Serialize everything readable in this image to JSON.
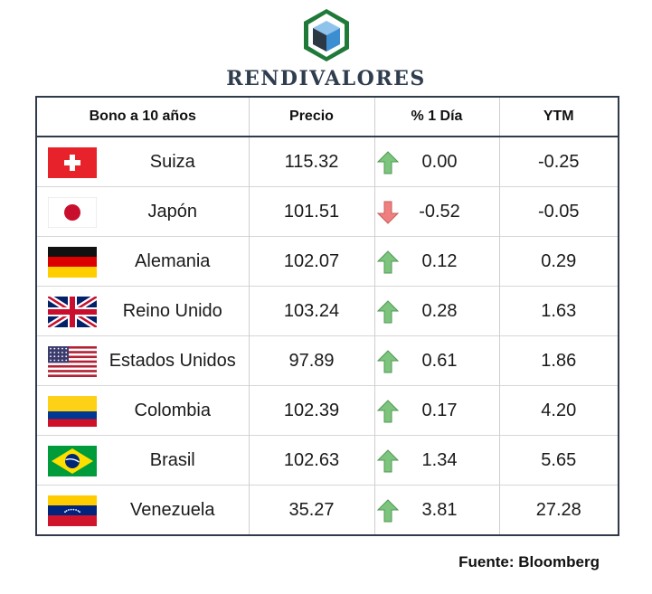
{
  "brand": {
    "name": "RENDIVALORES",
    "logo_icon": "cube-hexagon-logo"
  },
  "table": {
    "headers": [
      "Bono a 10 años",
      "Precio",
      "% 1 Día",
      "YTM"
    ],
    "rows": [
      {
        "country": "Suiza",
        "flag": "flag-switzerland",
        "price": "115.32",
        "change": "0.00",
        "direction": "up",
        "ytm": "-0.25"
      },
      {
        "country": "Japón",
        "flag": "flag-japan",
        "price": "101.51",
        "change": "-0.52",
        "direction": "down",
        "ytm": "-0.05"
      },
      {
        "country": "Alemania",
        "flag": "flag-germany",
        "price": "102.07",
        "change": "0.12",
        "direction": "up",
        "ytm": "0.29"
      },
      {
        "country": "Reino Unido",
        "flag": "flag-uk",
        "price": "103.24",
        "change": "0.28",
        "direction": "up",
        "ytm": "1.63"
      },
      {
        "country": "Estados Unidos",
        "flag": "flag-usa",
        "price": "97.89",
        "change": "0.61",
        "direction": "up",
        "ytm": "1.86"
      },
      {
        "country": "Colombia",
        "flag": "flag-colombia",
        "price": "102.39",
        "change": "0.17",
        "direction": "up",
        "ytm": "4.20"
      },
      {
        "country": "Brasil",
        "flag": "flag-brazil",
        "price": "102.63",
        "change": "1.34",
        "direction": "up",
        "ytm": "5.65"
      },
      {
        "country": "Venezuela",
        "flag": "flag-venezuela",
        "price": "35.27",
        "change": "3.81",
        "direction": "up",
        "ytm": "27.28"
      }
    ]
  },
  "source": "Fuente: Bloomberg",
  "colors": {
    "up_arrow": "#7dc47f",
    "down_arrow": "#f08080",
    "border": "#2f3a4a",
    "logo_green": "#1f7a3a",
    "logo_blue": "#3b8fd1"
  }
}
